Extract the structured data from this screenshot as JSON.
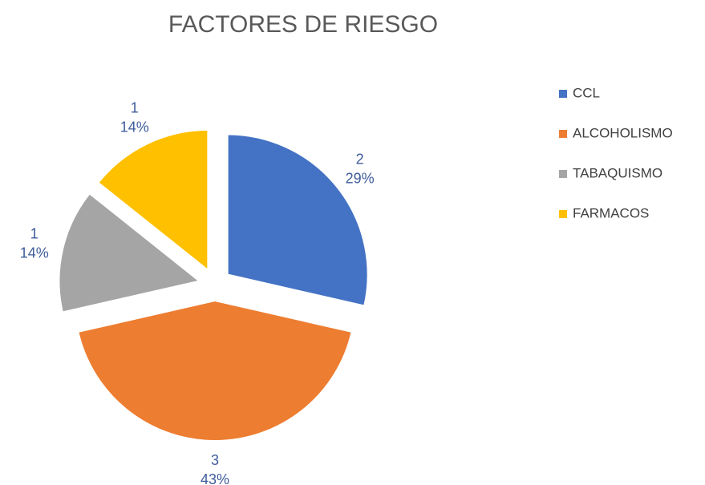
{
  "chart_data": {
    "type": "pie",
    "title": "FACTORES DE RIESGO",
    "categories": [
      "CCL",
      "ALCOHOLISMO",
      "TABAQUISMO",
      "FARMACOS"
    ],
    "values": [
      2,
      3,
      1,
      1
    ],
    "percent_labels": [
      "29%",
      "43%",
      "14%",
      "14%"
    ],
    "colors": [
      "#4472c4",
      "#ed7d31",
      "#a5a5a5",
      "#ffc000"
    ],
    "legend": "right"
  }
}
